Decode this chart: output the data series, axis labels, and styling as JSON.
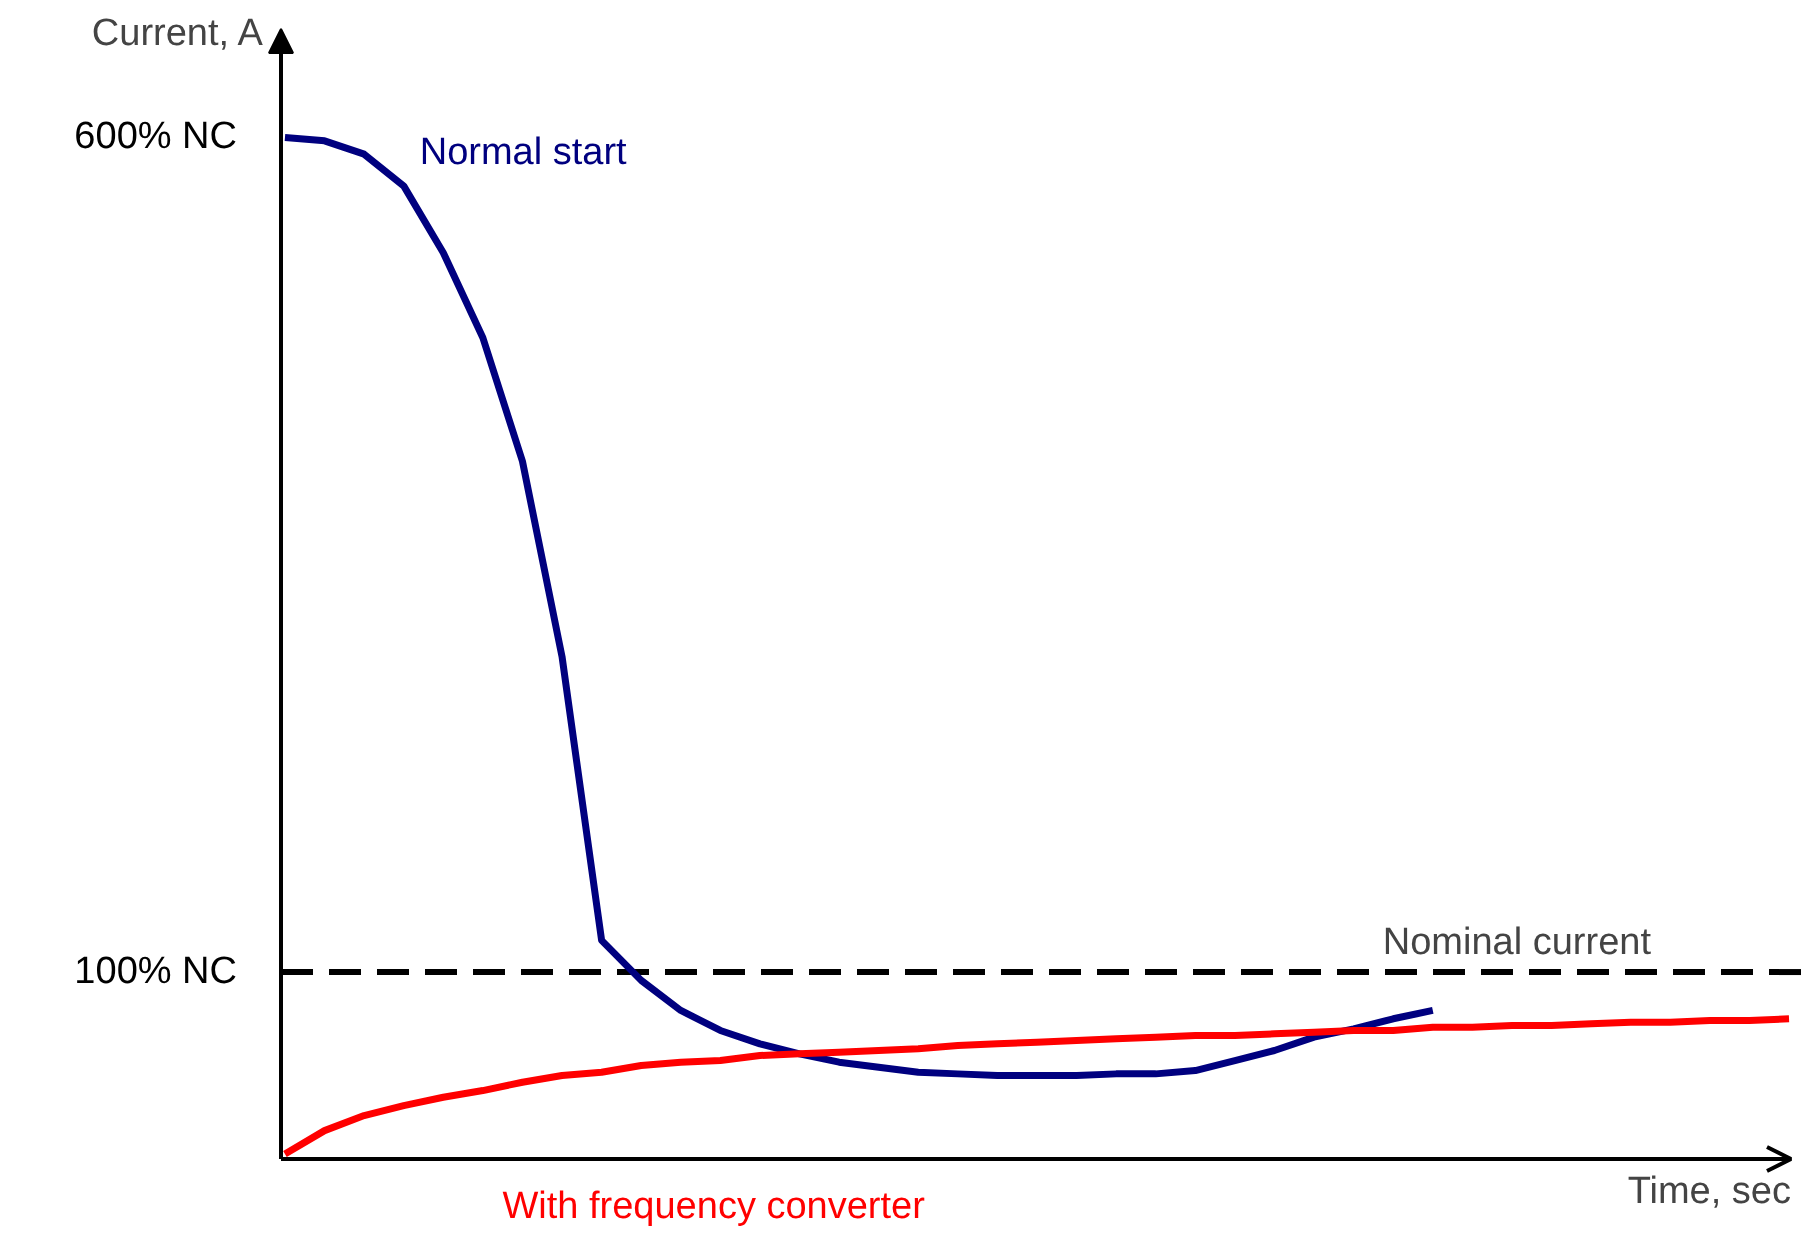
{
  "chart_data": {
    "type": "line",
    "xlabel": "Time, sec",
    "ylabel": "Current, A",
    "categories": [
      null,
      null,
      null,
      null,
      null,
      null,
      null,
      null,
      null,
      null,
      null,
      null,
      null,
      null,
      null,
      null,
      null,
      null,
      null,
      null,
      null,
      null,
      null,
      null,
      null,
      null,
      null,
      null,
      null,
      null,
      null,
      null,
      null,
      null,
      null,
      null,
      null,
      null,
      null
    ],
    "ylim": [
      -12,
      665
    ],
    "yticks": [
      {
        "value": 600,
        "label": "600% NC"
      },
      {
        "value": 100,
        "label": "100% NC"
      }
    ],
    "tick_labels": "y",
    "grid": false,
    "line_style": "solid",
    "marker": "none",
    "series": [
      {
        "name": "Normal start",
        "color": "#00007f",
        "values": [
          600,
          598,
          590,
          571,
          531,
          480,
          406,
          289,
          119,
          95,
          77,
          65,
          57,
          51,
          46,
          43,
          40,
          39,
          38,
          38,
          38,
          39,
          39,
          41,
          47,
          53,
          61,
          66,
          72,
          77,
          null,
          null,
          null,
          null,
          null,
          null,
          null,
          null,
          null
        ]
      },
      {
        "name": "With frequency converter",
        "color": "#ff0000",
        "values": [
          -9,
          5,
          14,
          20,
          25,
          29,
          34,
          38,
          40,
          44,
          46,
          47,
          50,
          51,
          52,
          53,
          54,
          56,
          57,
          58,
          59,
          60,
          61,
          62,
          62,
          63,
          64,
          65,
          65,
          67,
          67,
          68,
          68,
          69,
          70,
          70,
          71,
          71,
          72
        ]
      }
    ],
    "ref_lines": [
      {
        "axis": "y",
        "value": 100,
        "label": "Nominal current",
        "color": "#000000",
        "line_style": "dashed"
      }
    ]
  }
}
